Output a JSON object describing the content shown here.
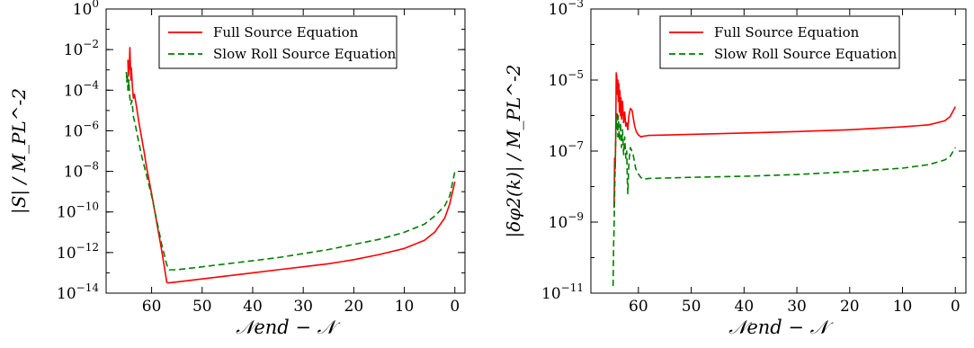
{
  "chart_data": [
    {
      "type": "line",
      "xlabel": "𝒩end − 𝒩",
      "ylabel": "|S| / M_PL^-2",
      "xlim": [
        69,
        -2
      ],
      "ylim_log10": [
        -14,
        0
      ],
      "log_y": true,
      "x_ticks": [
        60,
        50,
        40,
        30,
        20,
        10,
        0
      ],
      "y_ticks_exp": [
        -14,
        -12,
        -10,
        -8,
        -6,
        -4,
        -2,
        0
      ],
      "legend_position": "top-center",
      "series": [
        {
          "name": "Full Source Equation",
          "color": "#ff0000",
          "dash": "solid",
          "x": [
            64.7,
            64.6,
            64.4,
            64.3,
            64.1,
            64.0,
            63.8,
            63.6,
            63.4,
            63.0,
            62.5,
            62.0,
            61.5,
            61.0,
            60.0,
            59.0,
            58.0,
            57.3,
            57.0,
            56.8,
            55.0,
            50.0,
            45.0,
            40.0,
            35.0,
            30.0,
            25.0,
            20.0,
            15.0,
            10.0,
            6.0,
            4.0,
            2.0,
            1.0,
            0.0
          ],
          "y_log10": [
            -2.5,
            -3.3,
            -2.7,
            -1.9,
            -3.5,
            -2.9,
            -3.8,
            -4.4,
            -4.2,
            -4.8,
            -5.6,
            -6.3,
            -7.0,
            -7.8,
            -9.1,
            -10.5,
            -11.9,
            -13.0,
            -13.45,
            -13.5,
            -13.45,
            -13.3,
            -13.15,
            -13.0,
            -12.85,
            -12.7,
            -12.55,
            -12.35,
            -12.1,
            -11.8,
            -11.4,
            -11.0,
            -10.3,
            -9.6,
            -8.5
          ]
        },
        {
          "name": "Slow Roll Source Equation",
          "color": "#007f00",
          "dash": "dashed",
          "x": [
            65.0,
            64.9,
            64.8,
            64.7,
            64.5,
            64.3,
            64.1,
            63.9,
            63.6,
            63.3,
            63.0,
            62.5,
            62.0,
            61.0,
            60.0,
            59.0,
            58.0,
            57.0,
            56.5,
            55.0,
            50.0,
            45.0,
            40.0,
            35.0,
            30.0,
            25.0,
            20.0,
            15.0,
            10.0,
            6.0,
            4.0,
            2.0,
            1.0,
            0.0
          ],
          "y_log10": [
            -3.1,
            -3.6,
            -3.2,
            -4.0,
            -3.5,
            -4.4,
            -4.7,
            -4.5,
            -5.3,
            -5.6,
            -6.0,
            -6.6,
            -7.2,
            -8.2,
            -9.2,
            -10.4,
            -11.6,
            -12.6,
            -12.85,
            -12.85,
            -12.7,
            -12.55,
            -12.4,
            -12.25,
            -12.05,
            -11.85,
            -11.6,
            -11.35,
            -11.0,
            -10.6,
            -10.2,
            -9.7,
            -9.2,
            -8.0
          ]
        }
      ]
    },
    {
      "type": "line",
      "xlabel": "𝒩end − 𝒩",
      "ylabel": "|δφ2(k)| / M_PL^-2",
      "xlim": [
        69,
        -2
      ],
      "ylim_log10": [
        -11,
        -3
      ],
      "log_y": true,
      "x_ticks": [
        60,
        50,
        40,
        30,
        20,
        10,
        0
      ],
      "y_ticks_exp": [
        -11,
        -9,
        -7,
        -5,
        -3
      ],
      "legend_position": "top-right",
      "series": [
        {
          "name": "Full Source Equation",
          "color": "#ff0000",
          "dash": "solid",
          "x": [
            64.6,
            64.5,
            64.4,
            64.3,
            64.2,
            64.1,
            64.0,
            63.9,
            63.8,
            63.7,
            63.6,
            63.5,
            63.4,
            63.3,
            63.2,
            63.0,
            62.8,
            62.6,
            62.4,
            62.2,
            62.0,
            61.8,
            61.5,
            61.2,
            61.0,
            60.7,
            60.4,
            60.0,
            59.5,
            59.0,
            58.5,
            58.0,
            55.0,
            50.0,
            40.0,
            30.0,
            20.0,
            10.0,
            5.0,
            2.0,
            1.0,
            0.0
          ],
          "y_log10": [
            -8.6,
            -7.2,
            -7.5,
            -6.6,
            -4.8,
            -4.9,
            -5.4,
            -5.0,
            -5.6,
            -5.1,
            -5.9,
            -5.3,
            -6.0,
            -5.5,
            -6.1,
            -5.6,
            -6.2,
            -5.9,
            -6.3,
            -6.2,
            -6.4,
            -6.0,
            -5.8,
            -5.85,
            -6.05,
            -6.3,
            -6.45,
            -6.55,
            -6.6,
            -6.58,
            -6.57,
            -6.56,
            -6.55,
            -6.53,
            -6.49,
            -6.45,
            -6.4,
            -6.32,
            -6.26,
            -6.15,
            -6.03,
            -5.75
          ]
        },
        {
          "name": "Slow Roll Source Equation",
          "color": "#007f00",
          "dash": "dashed",
          "x": [
            64.8,
            64.7,
            64.6,
            64.5,
            64.4,
            64.3,
            64.2,
            64.1,
            64.0,
            63.9,
            63.8,
            63.6,
            63.4,
            63.2,
            63.0,
            62.8,
            62.6,
            62.4,
            62.2,
            62.1,
            62.0,
            61.8,
            61.5,
            61.0,
            60.5,
            60.0,
            59.5,
            59.0,
            58.5,
            58.0,
            55.0,
            50.0,
            40.0,
            30.0,
            20.0,
            10.0,
            5.0,
            2.0,
            1.0,
            0.0
          ],
          "y_log10": [
            -10.8,
            -9.6,
            -9.2,
            -8.2,
            -7.5,
            -6.7,
            -6.1,
            -6.4,
            -5.9,
            -6.6,
            -6.0,
            -6.7,
            -6.2,
            -6.9,
            -6.4,
            -7.1,
            -6.6,
            -7.2,
            -7.0,
            -7.8,
            -8.2,
            -7.3,
            -6.9,
            -7.1,
            -7.5,
            -7.65,
            -7.75,
            -7.8,
            -7.78,
            -7.77,
            -7.76,
            -7.74,
            -7.71,
            -7.66,
            -7.58,
            -7.48,
            -7.38,
            -7.25,
            -7.15,
            -6.9
          ]
        }
      ]
    }
  ]
}
